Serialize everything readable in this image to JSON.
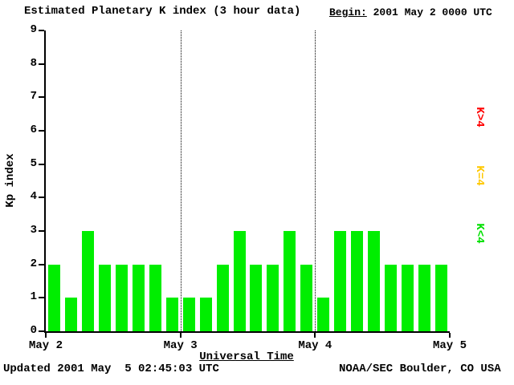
{
  "title": "Estimated Planetary K index (3 hour data)",
  "begin": {
    "label": "Begin:",
    "value": " 2001 May 2 0000 UTC"
  },
  "footer": {
    "updated": "Updated 2001 May  5 02:45:03 UTC",
    "source": "NOAA/SEC Boulder, CO USA"
  },
  "legend": [
    {
      "label": "K>4",
      "color": "#ff0000"
    },
    {
      "label": "K=4",
      "color": "#ffc800"
    },
    {
      "label": "K<4",
      "color": "#00e000"
    }
  ],
  "chart_data": {
    "type": "bar",
    "title": "Estimated Planetary K index (3 hour data)",
    "xlabel": "Universal Time",
    "ylabel": "Kp index",
    "ylim": [
      0,
      9
    ],
    "yticks": [
      0,
      1,
      2,
      3,
      4,
      5,
      6,
      7,
      8,
      9
    ],
    "xticklabels": [
      "May 2",
      "May 3",
      "May 4",
      "May 5"
    ],
    "bar_interval_hours": 3,
    "begin_utc": "2001 May 2 0000 UTC",
    "values": [
      2,
      1,
      3,
      2,
      2,
      2,
      2,
      1,
      1,
      1,
      2,
      3,
      2,
      2,
      3,
      2,
      1,
      3,
      3,
      3,
      2,
      2,
      2,
      2
    ],
    "bar_color": "#00ee00",
    "grid": "dotted vertical lines at day boundaries",
    "legend_position": "right"
  }
}
